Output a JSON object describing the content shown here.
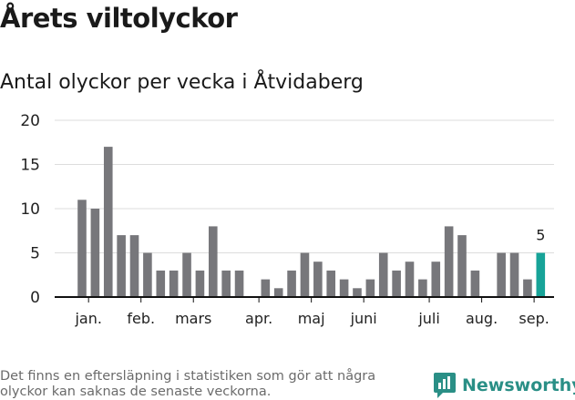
{
  "header": {
    "title": "Årets viltolyckor",
    "subtitle": "Antal olyckor per vecka i Åtvidaberg"
  },
  "chart_data": {
    "type": "bar",
    "title": "Årets viltolyckor",
    "subtitle": "Antal olyckor per vecka i Åtvidaberg",
    "xlabel": "",
    "ylabel": "",
    "ylim": [
      0,
      20
    ],
    "yticks": [
      0,
      5,
      10,
      15,
      20
    ],
    "grid": true,
    "x_week_start": 1,
    "values": [
      11,
      10,
      17,
      7,
      7,
      5,
      3,
      3,
      5,
      3,
      8,
      3,
      3,
      0,
      2,
      1,
      3,
      5,
      4,
      3,
      2,
      1,
      2,
      5,
      3,
      4,
      2,
      4,
      8,
      7,
      3,
      0,
      5,
      5,
      2,
      5
    ],
    "month_labels": [
      {
        "label": "jan.",
        "week": 1.5
      },
      {
        "label": "feb.",
        "week": 5.5
      },
      {
        "label": "mars",
        "week": 9.5
      },
      {
        "label": "apr.",
        "week": 14.5
      },
      {
        "label": "maj",
        "week": 18.5
      },
      {
        "label": "juni",
        "week": 22.5
      },
      {
        "label": "juli",
        "week": 27.5
      },
      {
        "label": "aug.",
        "week": 31.5
      },
      {
        "label": "sep.",
        "week": 35.5
      }
    ],
    "highlight_index": 35,
    "highlight_label": "5",
    "colors": {
      "bar": "#77777b",
      "highlight": "#17a398",
      "grid": "#dddddd",
      "axis": "#111111"
    }
  },
  "footer": {
    "note": "Det finns en eftersläpning i statistiken som gör att några olyckor kan saknas de senaste veckorna.",
    "brand": "Newsworthy",
    "brand_icon": "newsworthy-logo-icon",
    "brand_color": "#2a8f86"
  }
}
